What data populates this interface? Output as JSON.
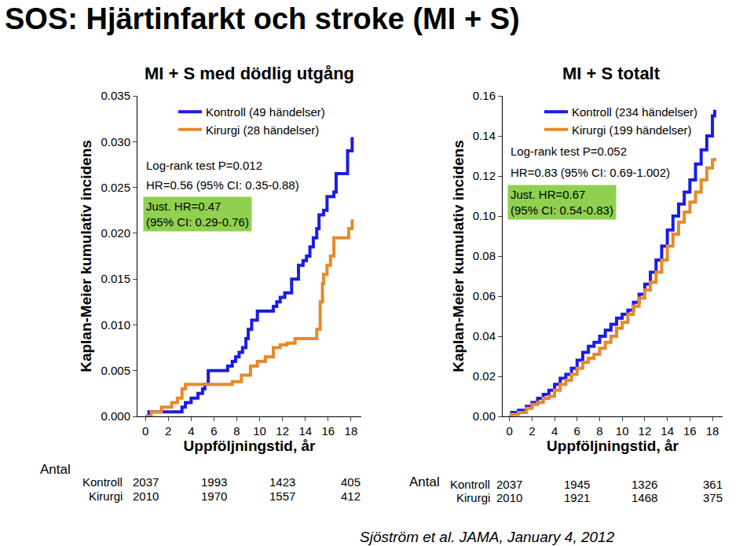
{
  "title": "SOS: Hjärtinfarkt och stroke (MI + S)",
  "source": "Sjöström et al. JAMA, January 4, 2012",
  "chart_data": [
    {
      "type": "line",
      "title": "MI + S med dödlig utgång",
      "x_label": "Uppföljningstid, år",
      "y_label": "Kaplan-Meier kumulativ incidens",
      "xlim": [
        -0.7,
        18.9
      ],
      "xticks": [
        0,
        2,
        4,
        6,
        8,
        10,
        12,
        14,
        16,
        18
      ],
      "ylim": [
        0,
        0.035
      ],
      "yticks": [
        {
          "value": 0,
          "label": "0.000"
        },
        {
          "value": 0.005,
          "label": "0.005"
        },
        {
          "value": 0.01,
          "label": "0.010"
        },
        {
          "value": 0.015,
          "label": "0.015"
        },
        {
          "value": 0.02,
          "label": "0.020"
        },
        {
          "value": 0.025,
          "label": "0.025"
        },
        {
          "value": 0.03,
          "label": "0.030"
        },
        {
          "value": 0.035,
          "label": "0.035"
        }
      ],
      "grid": false,
      "legend": "upper left",
      "series": [
        {
          "name": "Kontroll (49 händelser)",
          "color": "#1c1ce6",
          "line_style": "step",
          "x": [
            0,
            0.3,
            3.2,
            3.5,
            4.0,
            4.6,
            5.0,
            5.2,
            5.5,
            7.2,
            7.6,
            7.9,
            8.2,
            8.5,
            8.8,
            9.0,
            9.3,
            9.8,
            11.2,
            11.5,
            11.8,
            12.2,
            12.8,
            13.4,
            13.8,
            14.1,
            14.4,
            14.7,
            15.0,
            15.2,
            15.6,
            15.9,
            16.5,
            16.7,
            17.7,
            18.1
          ],
          "values": [
            0,
            0.0005,
            0.001,
            0.0015,
            0.002,
            0.0025,
            0.003,
            0.0035,
            0.005,
            0.0055,
            0.006,
            0.0065,
            0.007,
            0.0075,
            0.0085,
            0.0095,
            0.0105,
            0.0115,
            0.012,
            0.0125,
            0.013,
            0.0135,
            0.015,
            0.0165,
            0.017,
            0.0175,
            0.0185,
            0.0195,
            0.0205,
            0.022,
            0.0225,
            0.024,
            0.0245,
            0.0265,
            0.029,
            0.0305
          ]
        },
        {
          "name": "Kirurgi (28 händelser)",
          "color": "#e8892a",
          "line_style": "step",
          "x": [
            0,
            0.5,
            1.4,
            2.3,
            2.8,
            3.2,
            3.5,
            7.6,
            8.4,
            9.2,
            9.8,
            10.5,
            11.2,
            11.8,
            12.4,
            13.1,
            15.0,
            15.3,
            15.5,
            15.6,
            15.9,
            16.2,
            16.5,
            17.8,
            18.1
          ],
          "values": [
            0,
            0.0005,
            0.001,
            0.0015,
            0.002,
            0.003,
            0.0035,
            0.0038,
            0.0045,
            0.0055,
            0.006,
            0.0065,
            0.0075,
            0.0078,
            0.008,
            0.0085,
            0.0095,
            0.0125,
            0.0145,
            0.0155,
            0.0165,
            0.0175,
            0.0195,
            0.0205,
            0.0215
          ]
        }
      ],
      "annotations": [
        {
          "text": [
            "Log-rank test P=0.012"
          ]
        },
        {
          "text": [
            "HR=0.56 (95% CI: 0.35-0.88)"
          ]
        },
        {
          "text": [
            "Just. HR=0.47",
            "(95% CI: 0.29-0.76)"
          ],
          "color": "#8fd14f"
        }
      ],
      "risk_table": {
        "title": "Antal",
        "x": [
          0,
          6,
          12,
          18
        ],
        "rows": [
          {
            "name": "Kontroll",
            "values": [
              2037,
              1993,
              1423,
              405
            ]
          },
          {
            "name": "Kirurgi",
            "values": [
              2010,
              1970,
              1557,
              412
            ]
          }
        ]
      }
    },
    {
      "type": "line",
      "title": "MI + S totalt",
      "x_label": "Uppföljningstid, år",
      "y_label": "Kaplan-Meier kumulativ incidens",
      "xlim": [
        -0.6,
        18.9
      ],
      "xticks": [
        0,
        2,
        4,
        6,
        8,
        10,
        12,
        14,
        16,
        18
      ],
      "ylim": [
        0,
        0.16
      ],
      "yticks": [
        {
          "value": 0,
          "label": "0.00"
        },
        {
          "value": 0.02,
          "label": "0.02"
        },
        {
          "value": 0.04,
          "label": "0.04"
        },
        {
          "value": 0.06,
          "label": "0.06"
        },
        {
          "value": 0.08,
          "label": "0.08"
        },
        {
          "value": 0.1,
          "label": "0.10"
        },
        {
          "value": 0.12,
          "label": "0.12"
        },
        {
          "value": 0.14,
          "label": "0.14"
        },
        {
          "value": 0.16,
          "label": "0.16"
        }
      ],
      "grid": false,
      "legend": "upper left",
      "series": [
        {
          "name": "Kontroll (234 händelser)",
          "color": "#1c1ce6",
          "line_style": "step",
          "x": [
            0,
            0.2,
            0.8,
            1.5,
            2.0,
            2.5,
            3.0,
            3.5,
            4.0,
            4.5,
            5.0,
            5.5,
            6.0,
            6.5,
            7.0,
            7.5,
            8.0,
            8.5,
            9.0,
            9.5,
            10.0,
            10.5,
            11.0,
            11.5,
            12.0,
            12.5,
            13.0,
            13.5,
            14.0,
            14.5,
            15.0,
            15.5,
            16.0,
            16.5,
            17.0,
            17.5,
            18.0,
            18.2
          ],
          "values": [
            0,
            0.002,
            0.003,
            0.005,
            0.007,
            0.009,
            0.011,
            0.013,
            0.016,
            0.019,
            0.021,
            0.024,
            0.028,
            0.032,
            0.035,
            0.037,
            0.04,
            0.043,
            0.046,
            0.049,
            0.051,
            0.053,
            0.057,
            0.061,
            0.066,
            0.072,
            0.078,
            0.085,
            0.093,
            0.1,
            0.106,
            0.112,
            0.118,
            0.126,
            0.133,
            0.14,
            0.15,
            0.153
          ]
        },
        {
          "name": "Kirurgi (199 händelser)",
          "color": "#e8892a",
          "line_style": "step",
          "x": [
            0,
            0.2,
            0.8,
            1.5,
            2.0,
            2.5,
            3.0,
            3.5,
            4.0,
            4.5,
            5.0,
            5.5,
            6.0,
            6.5,
            7.0,
            7.5,
            8.0,
            8.5,
            9.0,
            9.5,
            10.0,
            10.5,
            11.0,
            11.5,
            12.0,
            12.5,
            13.0,
            13.5,
            14.0,
            14.5,
            15.0,
            15.5,
            16.0,
            16.5,
            17.0,
            17.5,
            18.0,
            18.2
          ],
          "values": [
            0,
            0.001,
            0.002,
            0.004,
            0.006,
            0.007,
            0.009,
            0.01,
            0.013,
            0.016,
            0.018,
            0.021,
            0.024,
            0.027,
            0.029,
            0.031,
            0.034,
            0.037,
            0.04,
            0.044,
            0.047,
            0.051,
            0.055,
            0.059,
            0.063,
            0.067,
            0.072,
            0.078,
            0.085,
            0.091,
            0.097,
            0.102,
            0.107,
            0.112,
            0.118,
            0.124,
            0.128,
            0.129
          ]
        }
      ],
      "annotations": [
        {
          "text": [
            "Log-rank test P=0.052"
          ]
        },
        {
          "text": [
            "HR=0.83 (95% CI: 0.69-1.002)"
          ]
        },
        {
          "text": [
            "Just. HR=0.67",
            "(95% CI: 0.54-0.83)"
          ],
          "color": "#8fd14f"
        }
      ],
      "risk_table": {
        "title": "Antal",
        "x": [
          0,
          6,
          12,
          18
        ],
        "rows": [
          {
            "name": "Kontroll",
            "values": [
              2037,
              1945,
              1326,
              361
            ]
          },
          {
            "name": "Kirurgi",
            "values": [
              2010,
              1921,
              1468,
              375
            ]
          }
        ]
      }
    }
  ]
}
